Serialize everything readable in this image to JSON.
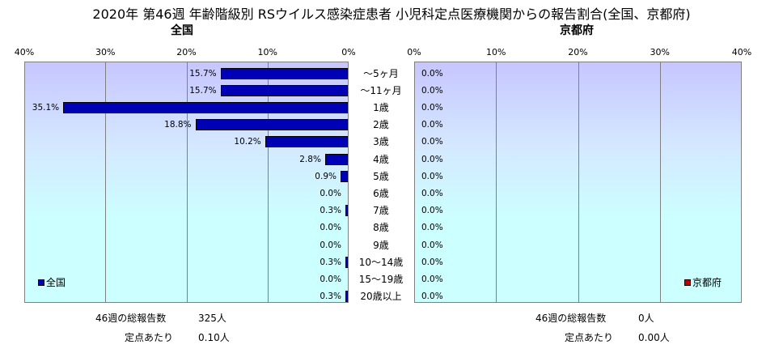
{
  "chart_data": [
    {
      "type": "bar",
      "orientation": "horizontal",
      "title": "2020年 第46週 年齢階級別 RSウイルス感染症患者 小児科定点医療機関からの報告割合(全国、京都府)",
      "subtitle": "全国",
      "categories": [
        "～5ヶ月",
        "～11ヶ月",
        "1歳",
        "2歳",
        "3歳",
        "4歳",
        "5歳",
        "6歳",
        "7歳",
        "8歳",
        "9歳",
        "10～14歳",
        "15～19歳",
        "20歳以上"
      ],
      "series": [
        {
          "name": "全国",
          "color": "#0000b4",
          "values": [
            15.7,
            15.7,
            35.1,
            18.8,
            10.2,
            2.8,
            0.9,
            0.0,
            0.3,
            0.0,
            0.0,
            0.3,
            0.0,
            0.3
          ],
          "value_labels": [
            "15.7%",
            "15.7%",
            "35.1%",
            "18.8%",
            "10.2%",
            "2.8%",
            "0.9%",
            "0.0%",
            "0.3%",
            "0.0%",
            "0.0%",
            "0.3%",
            "0.0%",
            "0.3%"
          ]
        }
      ],
      "xlim": [
        0,
        40
      ],
      "x_ticks": [
        "40%",
        "30%",
        "20%",
        "10%",
        "0%"
      ],
      "x_reversed": true,
      "grid": true,
      "legend_position": "bottom-left"
    },
    {
      "type": "bar",
      "orientation": "horizontal",
      "subtitle": "京都府",
      "categories": [
        "～5ヶ月",
        "～11ヶ月",
        "1歳",
        "2歳",
        "3歳",
        "4歳",
        "5歳",
        "6歳",
        "7歳",
        "8歳",
        "9歳",
        "10～14歳",
        "15～19歳",
        "20歳以上"
      ],
      "series": [
        {
          "name": "京都府",
          "color": "#c00000",
          "values": [
            0,
            0,
            0,
            0,
            0,
            0,
            0,
            0,
            0,
            0,
            0,
            0,
            0,
            0
          ],
          "value_labels": [
            "0.0%",
            "0.0%",
            "0.0%",
            "0.0%",
            "0.0%",
            "0.0%",
            "0.0%",
            "0.0%",
            "0.0%",
            "0.0%",
            "0.0%",
            "0.0%",
            "0.0%",
            "0.0%"
          ]
        }
      ],
      "xlim": [
        0,
        40
      ],
      "x_ticks": [
        "0%",
        "10%",
        "20%",
        "30%",
        "40%"
      ],
      "grid": true,
      "legend_position": "bottom-right"
    }
  ],
  "footer": {
    "national": {
      "reports_label": "46週の総報告数",
      "reports_value": "325人",
      "per_site_label": "定点あたり",
      "per_site_value": "0.10人"
    },
    "kyoto": {
      "reports_label": "46週の総報告数",
      "reports_value": "0人",
      "per_site_label": "定点あたり",
      "per_site_value": "0.00人"
    }
  }
}
